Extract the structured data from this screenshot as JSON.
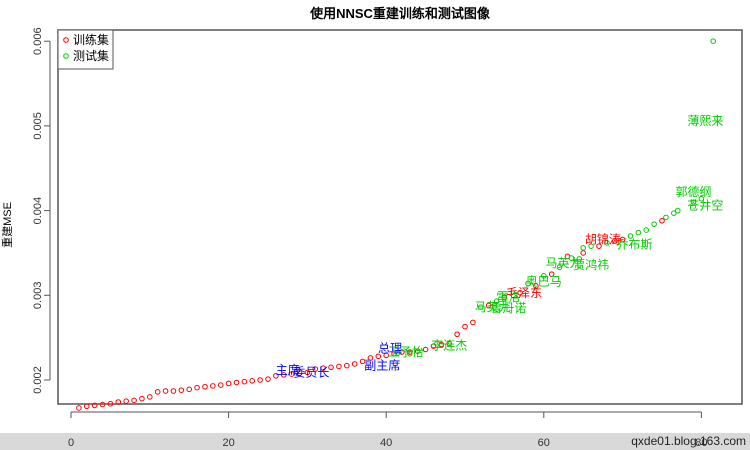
{
  "chart_data": {
    "type": "scatter",
    "title": "使用NNSC重建训练和测试图像",
    "xlabel": "",
    "ylabel": "重建MSE",
    "xlim": [
      0,
      82
    ],
    "ylim": [
      0.00164,
      0.00605
    ],
    "x_ticks": [
      0,
      20,
      40,
      60,
      80
    ],
    "y_ticks": [
      0.002,
      0.003,
      0.004,
      0.005,
      0.006
    ],
    "x_tick_labels": [
      "0",
      "20",
      "40",
      "60",
      "80"
    ],
    "y_tick_labels": [
      "0.002",
      "0.003",
      "0.004",
      "0.005",
      "0.006"
    ],
    "grid": false,
    "legend_position": "topleft",
    "legend": [
      {
        "label": "训练集",
        "color": "#ff0000"
      },
      {
        "label": "测试集",
        "color": "#00cc00"
      }
    ],
    "series": [
      {
        "name": "训练集",
        "color": "#ff0000",
        "points": [
          [
            1,
            0.00167
          ],
          [
            2,
            0.00169
          ],
          [
            3,
            0.0017
          ],
          [
            4,
            0.00171
          ],
          [
            5,
            0.00172
          ],
          [
            6,
            0.00174
          ],
          [
            7,
            0.00175
          ],
          [
            8,
            0.00176
          ],
          [
            9,
            0.00178
          ],
          [
            10,
            0.0018
          ],
          [
            11,
            0.00186
          ],
          [
            12,
            0.00187
          ],
          [
            13,
            0.00187
          ],
          [
            14,
            0.00188
          ],
          [
            15,
            0.00189
          ],
          [
            16,
            0.00191
          ],
          [
            17,
            0.00192
          ],
          [
            18,
            0.00193
          ],
          [
            19,
            0.00194
          ],
          [
            20,
            0.00196
          ],
          [
            21,
            0.00197
          ],
          [
            22,
            0.00198
          ],
          [
            23,
            0.00199
          ],
          [
            24,
            0.002
          ],
          [
            25,
            0.00201
          ],
          [
            26,
            0.00205
          ],
          [
            27,
            0.00206
          ],
          [
            28,
            0.00207
          ],
          [
            29,
            0.00208
          ],
          [
            30,
            0.00209
          ],
          [
            31,
            0.00213
          ],
          [
            32,
            0.00214
          ],
          [
            33,
            0.00215
          ],
          [
            34,
            0.00216
          ],
          [
            35,
            0.00217
          ],
          [
            36,
            0.00219
          ],
          [
            37,
            0.00222
          ],
          [
            38,
            0.00226
          ],
          [
            39,
            0.00228
          ],
          [
            40,
            0.00229
          ],
          [
            41,
            0.00231
          ],
          [
            42,
            0.00233
          ],
          [
            43,
            0.00233
          ],
          [
            44,
            0.00234
          ],
          [
            45,
            0.00236
          ],
          [
            46,
            0.0024
          ],
          [
            47,
            0.00242
          ],
          [
            48,
            0.00243
          ],
          [
            49,
            0.00254
          ],
          [
            50,
            0.00263
          ],
          [
            51,
            0.00268
          ],
          [
            53,
            0.00288
          ],
          [
            55,
            0.00298
          ],
          [
            57,
            0.00303
          ],
          [
            59,
            0.00311
          ],
          [
            61,
            0.00325
          ],
          [
            63,
            0.00346
          ],
          [
            65,
            0.0035
          ],
          [
            67,
            0.00358
          ],
          [
            69,
            0.00364
          ],
          [
            70,
            0.00366
          ],
          [
            75,
            0.00388
          ]
        ]
      },
      {
        "name": "测试集",
        "color": "#00cc00",
        "points": [
          [
            41.5,
            0.00232
          ],
          [
            43,
            0.00231
          ],
          [
            47,
            0.00241
          ],
          [
            52,
            0.00286
          ],
          [
            54,
            0.00293
          ],
          [
            55,
            0.00297
          ],
          [
            58,
            0.00314
          ],
          [
            60,
            0.00323
          ],
          [
            62,
            0.00333
          ],
          [
            63.5,
            0.00344
          ],
          [
            64.5,
            0.00343
          ],
          [
            65,
            0.00356
          ],
          [
            66,
            0.00358
          ],
          [
            68,
            0.00362
          ],
          [
            71,
            0.0037
          ],
          [
            72,
            0.00374
          ],
          [
            73,
            0.00377
          ],
          [
            74,
            0.00384
          ],
          [
            75.5,
            0.00392
          ],
          [
            76.5,
            0.00397
          ],
          [
            77,
            0.004
          ],
          [
            79,
            0.0041
          ],
          [
            80,
            0.00414
          ],
          [
            81.5,
            0.006
          ]
        ]
      }
    ],
    "annotations": [
      {
        "text": "主席",
        "x": 27.5,
        "y": 0.00212,
        "color": "#0000ff"
      },
      {
        "text": "委员长",
        "x": 30.5,
        "y": 0.00209,
        "color": "#0000ff"
      },
      {
        "text": "副主席",
        "x": 39.5,
        "y": 0.00217,
        "color": "#0000ff"
      },
      {
        "text": "总理",
        "x": 40.5,
        "y": 0.00237,
        "color": "#0000ff"
      },
      {
        "text": "王予怡",
        "x": 42.5,
        "y": 0.00233,
        "color": "#00cc00"
      },
      {
        "text": "李连杰",
        "x": 48,
        "y": 0.00241,
        "color": "#00cc00"
      },
      {
        "text": "马英九",
        "x": 53.5,
        "y": 0.00286,
        "color": "#00cc00"
      },
      {
        "text": "鲁丹诺",
        "x": 55.5,
        "y": 0.00285,
        "color": "#00cc00"
      },
      {
        "text": "雷洛",
        "x": 55.5,
        "y": 0.00298,
        "color": "#00cc00"
      },
      {
        "text": "毛泽东",
        "x": 57.5,
        "y": 0.00303,
        "color": "#ff0000"
      },
      {
        "text": "奥巴马",
        "x": 60,
        "y": 0.00316,
        "color": "#00cc00"
      },
      {
        "text": "马英九",
        "x": 62.5,
        "y": 0.00338,
        "color": "#00cc00"
      },
      {
        "text": "贾鸿祎",
        "x": 66,
        "y": 0.00336,
        "color": "#00cc00"
      },
      {
        "text": "胡锦涛",
        "x": 67.5,
        "y": 0.00366,
        "color": "#ff0000"
      },
      {
        "text": "乔布斯",
        "x": 71.5,
        "y": 0.0036,
        "color": "#00cc00"
      },
      {
        "text": "郭德纲",
        "x": 79,
        "y": 0.00422,
        "color": "#00cc00"
      },
      {
        "text": "苍井空",
        "x": 80.5,
        "y": 0.00406,
        "color": "#00cc00"
      },
      {
        "text": "薄熙来",
        "x": 80.5,
        "y": 0.00506,
        "color": "#00cc00"
      }
    ]
  },
  "page": {
    "watermark": "qxde01.blog.163.com"
  }
}
